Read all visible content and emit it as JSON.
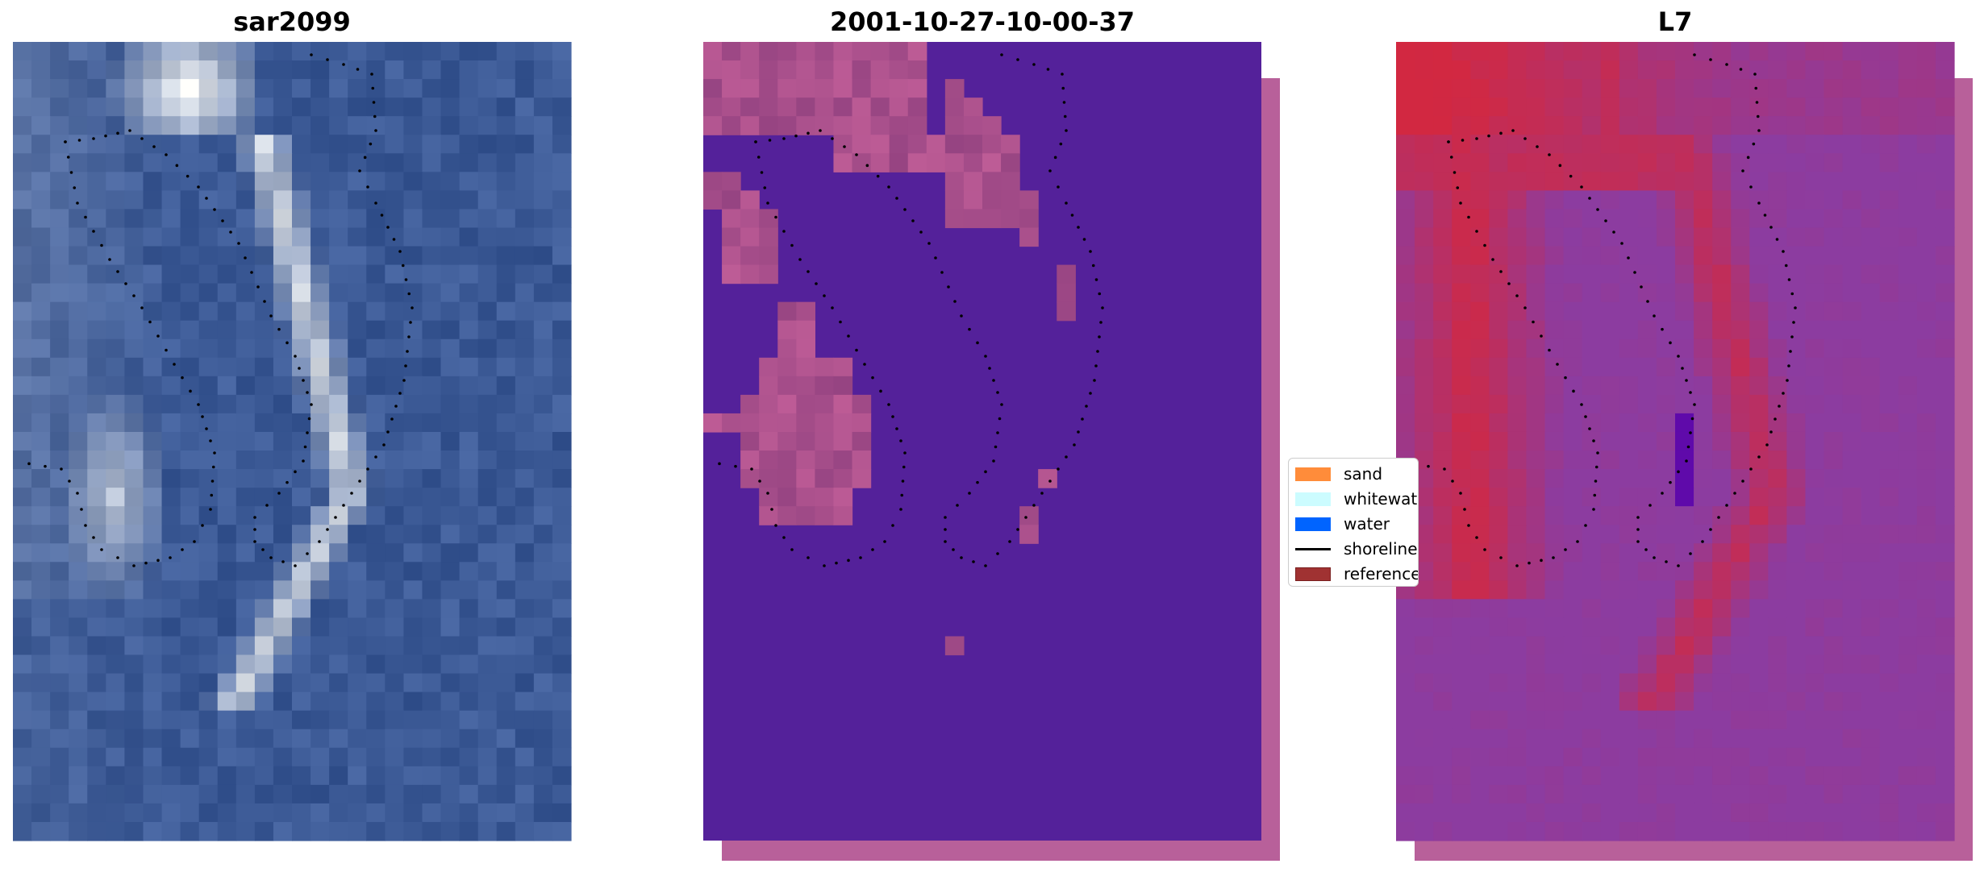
{
  "chart_data": {
    "type": "heatmap",
    "panels": [
      {
        "title": "sar2099",
        "colormap": "rgb-satellite"
      },
      {
        "title": "2001-10-27-10-00-37",
        "colormap": "classification"
      },
      {
        "title": "L7",
        "colormap": "index"
      }
    ],
    "legend": {
      "placement": "center",
      "entries": [
        {
          "label": "sand",
          "color": "#ff8c3a",
          "kind": "patch"
        },
        {
          "label": "whitewater",
          "color": "#ccfcff",
          "kind": "patch"
        },
        {
          "label": "water",
          "color": "#0064ff",
          "kind": "patch"
        },
        {
          "label": "shoreline",
          "color": "#000000",
          "kind": "line"
        },
        {
          "label": "reference",
          "color": "#a03232",
          "kind": "patch"
        }
      ]
    },
    "axes_visible": false
  }
}
